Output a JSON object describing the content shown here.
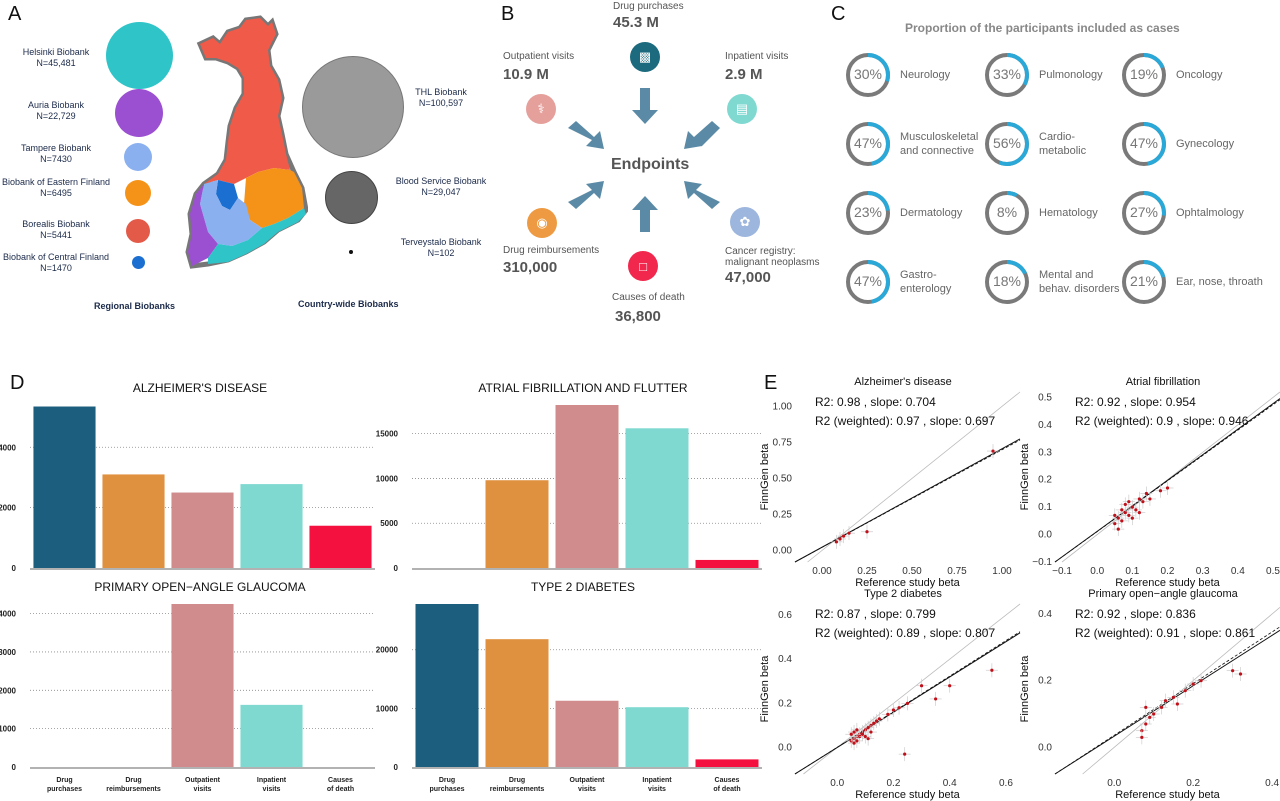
{
  "panels": {
    "a": "A",
    "b": "B",
    "c": "C",
    "d": "D",
    "e": "E"
  },
  "panelA": {
    "regional": [
      {
        "name": "Helsinki Biobank",
        "n": "N=45,481",
        "color": "#2ec4c8"
      },
      {
        "name": "Auria Biobank",
        "n": "N=22,729",
        "color": "#9b4fd1"
      },
      {
        "name": "Tampere Biobank",
        "n": "N=7430",
        "color": "#8ab0f0"
      },
      {
        "name": "Biobank of Eastern Finland",
        "n": "N=6495",
        "color": "#f59218"
      },
      {
        "name": "Borealis Biobank",
        "n": "N=5441",
        "color": "#e35a48"
      },
      {
        "name": "Biobank of Central Finland",
        "n": "N=1470",
        "color": "#1b6fd0"
      }
    ],
    "countrywide": [
      {
        "name": "THL Biobank",
        "n": "N=100,597",
        "color": "#9a9a9a"
      },
      {
        "name": "Blood Service Biobank",
        "n": "N=29,047",
        "color": "#666666"
      },
      {
        "name": "Terveystalo Biobank",
        "n": "N=102",
        "color": "#111111"
      }
    ],
    "regional_label": "Regional Biobanks",
    "countrywide_label": "Country-wide Biobanks"
  },
  "panelB": {
    "center": "Endpoints",
    "items": [
      {
        "title": "Drug purchases",
        "value": "45.3 M",
        "color": "#1b6a7e",
        "icon": "chart-icon"
      },
      {
        "title": "Outpatient visits",
        "value": "10.9 M",
        "color": "#e5a09c",
        "icon": "stethoscope-icon"
      },
      {
        "title": "Inpatient visits",
        "value": "2.9 M",
        "color": "#7fd9d1",
        "icon": "hospital-icon"
      },
      {
        "title": "Drug reimbursements",
        "value": "310,000",
        "color": "#ee9a43",
        "icon": "pills-icon"
      },
      {
        "title": "Causes of death",
        "value": "36,800",
        "color": "#f2274d",
        "icon": "document-icon"
      },
      {
        "title": "Cancer registry:",
        "title2": "malignant neoplasms",
        "value": "47,000",
        "color": "#9db6dd",
        "icon": "ribbon-icon"
      }
    ]
  },
  "panelC": {
    "title": "Proportion of the participants  included as cases",
    "accent": "#2aa8d8",
    "items": [
      {
        "pct": "30%",
        "frac": 0.3,
        "l1": "Neurology",
        "l2": ""
      },
      {
        "pct": "33%",
        "frac": 0.33,
        "l1": "Pulmonology",
        "l2": ""
      },
      {
        "pct": "19%",
        "frac": 0.19,
        "l1": "Oncology",
        "l2": ""
      },
      {
        "pct": "47%",
        "frac": 0.47,
        "l1": "Musculoskeletal",
        "l2": "and connective"
      },
      {
        "pct": "56%",
        "frac": 0.56,
        "l1": "Cardio-",
        "l2": "metabolic"
      },
      {
        "pct": "47%",
        "frac": 0.47,
        "l1": "Gynecology",
        "l2": ""
      },
      {
        "pct": "23%",
        "frac": 0.23,
        "l1": "Dermatology",
        "l2": ""
      },
      {
        "pct": "8%",
        "frac": 0.08,
        "l1": "Hematology",
        "l2": ""
      },
      {
        "pct": "27%",
        "frac": 0.27,
        "l1": "Ophtalmology",
        "l2": ""
      },
      {
        "pct": "47%",
        "frac": 0.47,
        "l1": "Gastro-",
        "l2": "enterology"
      },
      {
        "pct": "18%",
        "frac": 0.18,
        "l1": "Mental and",
        "l2": "behav. disorders"
      },
      {
        "pct": "21%",
        "frac": 0.21,
        "l1": "Ear, nose, throath",
        "l2": ""
      }
    ]
  },
  "chart_data": [
    {
      "type": "bar",
      "title": "ALZHEIMER'S DISEASE",
      "categories": [
        "Drug purchases",
        "Drug reimbursements",
        "Outpatient visits",
        "Inpatient visits",
        "Causes of death"
      ],
      "values": [
        5350,
        3100,
        2500,
        2780,
        1400
      ],
      "colors": [
        "#1b5e7d",
        "#e0913f",
        "#d08c8c",
        "#7fd9d1",
        "#f5113f"
      ],
      "ylim": [
        0,
        5400
      ],
      "yticks": [
        0,
        2000,
        4000
      ]
    },
    {
      "type": "bar",
      "title": "ATRIAL FIBRILLATION AND FLUTTER",
      "categories": [
        "Drug purchases",
        "Drug reimbursements",
        "Outpatient visits",
        "Inpatient visits",
        "Causes of death"
      ],
      "values": [
        0,
        9800,
        18200,
        15600,
        900
      ],
      "colors": [
        "#1b5e7d",
        "#e0913f",
        "#d08c8c",
        "#7fd9d1",
        "#f5113f"
      ],
      "ylim": [
        0,
        18200
      ],
      "yticks": [
        0,
        5000,
        10000,
        15000
      ]
    },
    {
      "type": "bar",
      "title": "PRIMARY OPEN−ANGLE GLAUCOMA",
      "categories": [
        "Drug purchases",
        "Drug reimbursements",
        "Outpatient visits",
        "Inpatient visits",
        "Causes of death"
      ],
      "values": [
        0,
        0,
        4250,
        1620,
        0
      ],
      "colors": [
        "#1b5e7d",
        "#e0913f",
        "#d08c8c",
        "#7fd9d1",
        "#f5113f"
      ],
      "ylim": [
        0,
        4250
      ],
      "yticks": [
        0,
        1000,
        2000,
        3000,
        4000
      ]
    },
    {
      "type": "bar",
      "title": "TYPE 2 DIABETES",
      "categories": [
        "Drug purchases",
        "Drug reimbursements",
        "Outpatient visits",
        "Inpatient visits",
        "Causes of death"
      ],
      "values": [
        27800,
        21800,
        11300,
        10200,
        1300
      ],
      "colors": [
        "#1b5e7d",
        "#e0913f",
        "#d08c8c",
        "#7fd9d1",
        "#f5113f"
      ],
      "ylim": [
        0,
        27800
      ],
      "yticks": [
        0,
        10000,
        20000
      ]
    },
    {
      "type": "scatter",
      "title": "Alzheimer's disease",
      "xlabel": "Reference study beta",
      "ylabel": "FinnGen beta",
      "xlim": [
        -0.15,
        1.1
      ],
      "ylim": [
        -0.08,
        1.1
      ],
      "xticks": [
        0.0,
        0.25,
        0.5,
        0.75,
        1.0
      ],
      "yticks": [
        0.0,
        0.25,
        0.5,
        0.75,
        1.0
      ],
      "xtick_labels": [
        "0.00",
        "0.25",
        "0.50",
        "0.75",
        "1.00"
      ],
      "ytick_labels": [
        "0.00",
        "0.25",
        "0.50",
        "0.75",
        "1.00"
      ],
      "stats": [
        "R2: 0.98 , slope: 0.704",
        "R2 (weighted): 0.97 , slope: 0.697"
      ],
      "slope": 0.704,
      "slope_w": 0.697,
      "points": [
        [
          0.08,
          0.06
        ],
        [
          0.1,
          0.08
        ],
        [
          0.12,
          0.1
        ],
        [
          0.15,
          0.12
        ],
        [
          0.25,
          0.13
        ],
        [
          0.95,
          0.69
        ]
      ]
    },
    {
      "type": "scatter",
      "title": "Atrial fibrillation",
      "xlabel": "Reference study beta",
      "ylabel": "FinnGen beta",
      "xlim": [
        -0.12,
        0.52
      ],
      "ylim": [
        -0.1,
        0.52
      ],
      "xticks": [
        -0.1,
        0.0,
        0.1,
        0.2,
        0.3,
        0.4,
        0.5
      ],
      "yticks": [
        -0.1,
        0.0,
        0.1,
        0.2,
        0.3,
        0.4,
        0.5
      ],
      "xtick_labels": [
        "−0.1",
        "0.0",
        "0.1",
        "0.2",
        "0.3",
        "0.4",
        "0.5"
      ],
      "ytick_labels": [
        "−0.1",
        "0.0",
        "0.1",
        "0.2",
        "0.3",
        "0.4",
        "0.5"
      ],
      "stats": [
        "R2: 0.92 , slope: 0.954",
        "R2 (weighted): 0.9 , slope: 0.946"
      ],
      "slope": 0.954,
      "slope_w": 0.946,
      "points": [
        [
          0.05,
          0.04
        ],
        [
          0.06,
          0.06
        ],
        [
          0.07,
          0.05
        ],
        [
          0.08,
          0.08
        ],
        [
          0.09,
          0.07
        ],
        [
          0.1,
          0.1
        ],
        [
          0.11,
          0.09
        ],
        [
          0.12,
          0.13
        ],
        [
          0.13,
          0.12
        ],
        [
          0.06,
          0.02
        ],
        [
          0.07,
          0.09
        ],
        [
          0.08,
          0.11
        ],
        [
          0.14,
          0.15
        ],
        [
          0.18,
          0.16
        ],
        [
          0.2,
          0.17
        ],
        [
          0.09,
          0.12
        ],
        [
          0.1,
          0.06
        ],
        [
          0.12,
          0.08
        ],
        [
          0.15,
          0.13
        ],
        [
          0.05,
          0.07
        ]
      ]
    },
    {
      "type": "scatter",
      "title": "Type 2 diabetes",
      "xlabel": "Reference study beta",
      "ylabel": "FinnGen beta",
      "xlim": [
        -0.15,
        0.65
      ],
      "ylim": [
        -0.12,
        0.65
      ],
      "xticks": [
        0.0,
        0.2,
        0.4,
        0.6
      ],
      "yticks": [
        0.0,
        0.2,
        0.4,
        0.6
      ],
      "xtick_labels": [
        "0.0",
        "0.2",
        "0.4",
        "0.6"
      ],
      "ytick_labels": [
        "0.0",
        "0.2",
        "0.4",
        "0.6"
      ],
      "stats": [
        "R2: 0.87 , slope: 0.799",
        "R2 (weighted): 0.89 , slope: 0.807"
      ],
      "slope": 0.799,
      "slope_w": 0.807,
      "points": [
        [
          0.05,
          0.03
        ],
        [
          0.06,
          0.04
        ],
        [
          0.07,
          0.05
        ],
        [
          0.08,
          0.06
        ],
        [
          0.09,
          0.07
        ],
        [
          0.1,
          0.08
        ],
        [
          0.11,
          0.09
        ],
        [
          0.12,
          0.1
        ],
        [
          0.13,
          0.11
        ],
        [
          0.14,
          0.12
        ],
        [
          0.06,
          0.02
        ],
        [
          0.07,
          0.03
        ],
        [
          0.08,
          0.05
        ],
        [
          0.09,
          0.06
        ],
        [
          0.1,
          0.05
        ],
        [
          0.05,
          0.06
        ],
        [
          0.06,
          0.07
        ],
        [
          0.07,
          0.08
        ],
        [
          0.15,
          0.13
        ],
        [
          0.18,
          0.15
        ],
        [
          0.2,
          0.17
        ],
        [
          0.22,
          0.18
        ],
        [
          0.25,
          0.2
        ],
        [
          0.3,
          0.28
        ],
        [
          0.35,
          0.22
        ],
        [
          0.4,
          0.28
        ],
        [
          0.55,
          0.35
        ],
        [
          0.24,
          -0.03
        ],
        [
          0.11,
          0.04
        ],
        [
          0.12,
          0.07
        ]
      ]
    },
    {
      "type": "scatter",
      "title": "Primary open−angle glaucoma",
      "xlabel": "Reference study beta",
      "ylabel": "FinnGen beta",
      "xlim": [
        -0.15,
        0.42
      ],
      "ylim": [
        -0.08,
        0.43
      ],
      "xticks": [
        0.0,
        0.2,
        0.4
      ],
      "yticks": [
        0.0,
        0.2,
        0.4
      ],
      "xtick_labels": [
        "0.0",
        "0.2",
        "0.4"
      ],
      "ytick_labels": [
        "0.0",
        "0.2",
        "0.4"
      ],
      "stats": [
        "R2: 0.92 , slope: 0.836",
        "R2 (weighted): 0.91 , slope: 0.861"
      ],
      "slope": 0.836,
      "slope_w": 0.861,
      "points": [
        [
          0.07,
          0.05
        ],
        [
          0.08,
          0.07
        ],
        [
          0.09,
          0.09
        ],
        [
          0.1,
          0.1
        ],
        [
          0.12,
          0.12
        ],
        [
          0.13,
          0.14
        ],
        [
          0.15,
          0.15
        ],
        [
          0.16,
          0.13
        ],
        [
          0.18,
          0.17
        ],
        [
          0.2,
          0.19
        ],
        [
          0.22,
          0.2
        ],
        [
          0.3,
          0.23
        ],
        [
          0.32,
          0.22
        ],
        [
          0.08,
          0.12
        ],
        [
          0.07,
          0.03
        ]
      ]
    }
  ]
}
